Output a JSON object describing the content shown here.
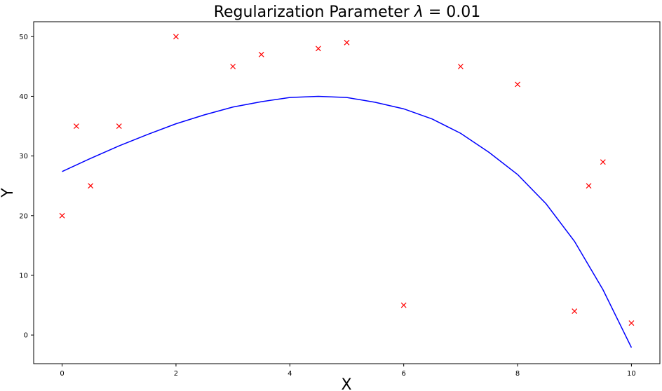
{
  "chart_data": {
    "type": "scatter",
    "title_prefix": "Regularization Parameter ",
    "title_symbol": "λ",
    "title_suffix": " = 0.01",
    "xlabel": "X",
    "ylabel": "Y",
    "xlim": [
      -0.5,
      10.5
    ],
    "ylim": [
      -4.8,
      52.5
    ],
    "xticks": [
      0,
      2,
      4,
      6,
      8,
      10
    ],
    "yticks": [
      0,
      10,
      20,
      30,
      40,
      50
    ],
    "grid": false,
    "legend": "none",
    "series": [
      {
        "kind": "scatter",
        "marker": "x",
        "color": "#ff0000",
        "points": [
          {
            "x": 0,
            "y": 20
          },
          {
            "x": 0.25,
            "y": 35
          },
          {
            "x": 0.5,
            "y": 25
          },
          {
            "x": 1,
            "y": 35
          },
          {
            "x": 2,
            "y": 50
          },
          {
            "x": 3,
            "y": 45
          },
          {
            "x": 3.5,
            "y": 47
          },
          {
            "x": 4.5,
            "y": 48
          },
          {
            "x": 5,
            "y": 49
          },
          {
            "x": 6,
            "y": 5
          },
          {
            "x": 7,
            "y": 45
          },
          {
            "x": 8,
            "y": 42
          },
          {
            "x": 9,
            "y": 4
          },
          {
            "x": 9.25,
            "y": 25
          },
          {
            "x": 9.5,
            "y": 29
          },
          {
            "x": 10,
            "y": 2
          }
        ]
      },
      {
        "kind": "line",
        "color": "#0000ff",
        "points": [
          {
            "x": 0,
            "y": 27.4
          },
          {
            "x": 0.5,
            "y": 29.6
          },
          {
            "x": 1,
            "y": 31.7
          },
          {
            "x": 1.5,
            "y": 33.6
          },
          {
            "x": 2,
            "y": 35.4
          },
          {
            "x": 2.5,
            "y": 36.9
          },
          {
            "x": 3,
            "y": 38.2
          },
          {
            "x": 3.5,
            "y": 39.1
          },
          {
            "x": 4,
            "y": 39.8
          },
          {
            "x": 4.5,
            "y": 40.0
          },
          {
            "x": 5,
            "y": 39.8
          },
          {
            "x": 5.5,
            "y": 39.0
          },
          {
            "x": 6,
            "y": 37.9
          },
          {
            "x": 6.5,
            "y": 36.2
          },
          {
            "x": 7,
            "y": 33.8
          },
          {
            "x": 7.5,
            "y": 30.6
          },
          {
            "x": 8,
            "y": 26.9
          },
          {
            "x": 8.5,
            "y": 22.0
          },
          {
            "x": 9,
            "y": 15.7
          },
          {
            "x": 9.5,
            "y": 7.6
          },
          {
            "x": 10,
            "y": -2.1
          }
        ]
      }
    ]
  }
}
